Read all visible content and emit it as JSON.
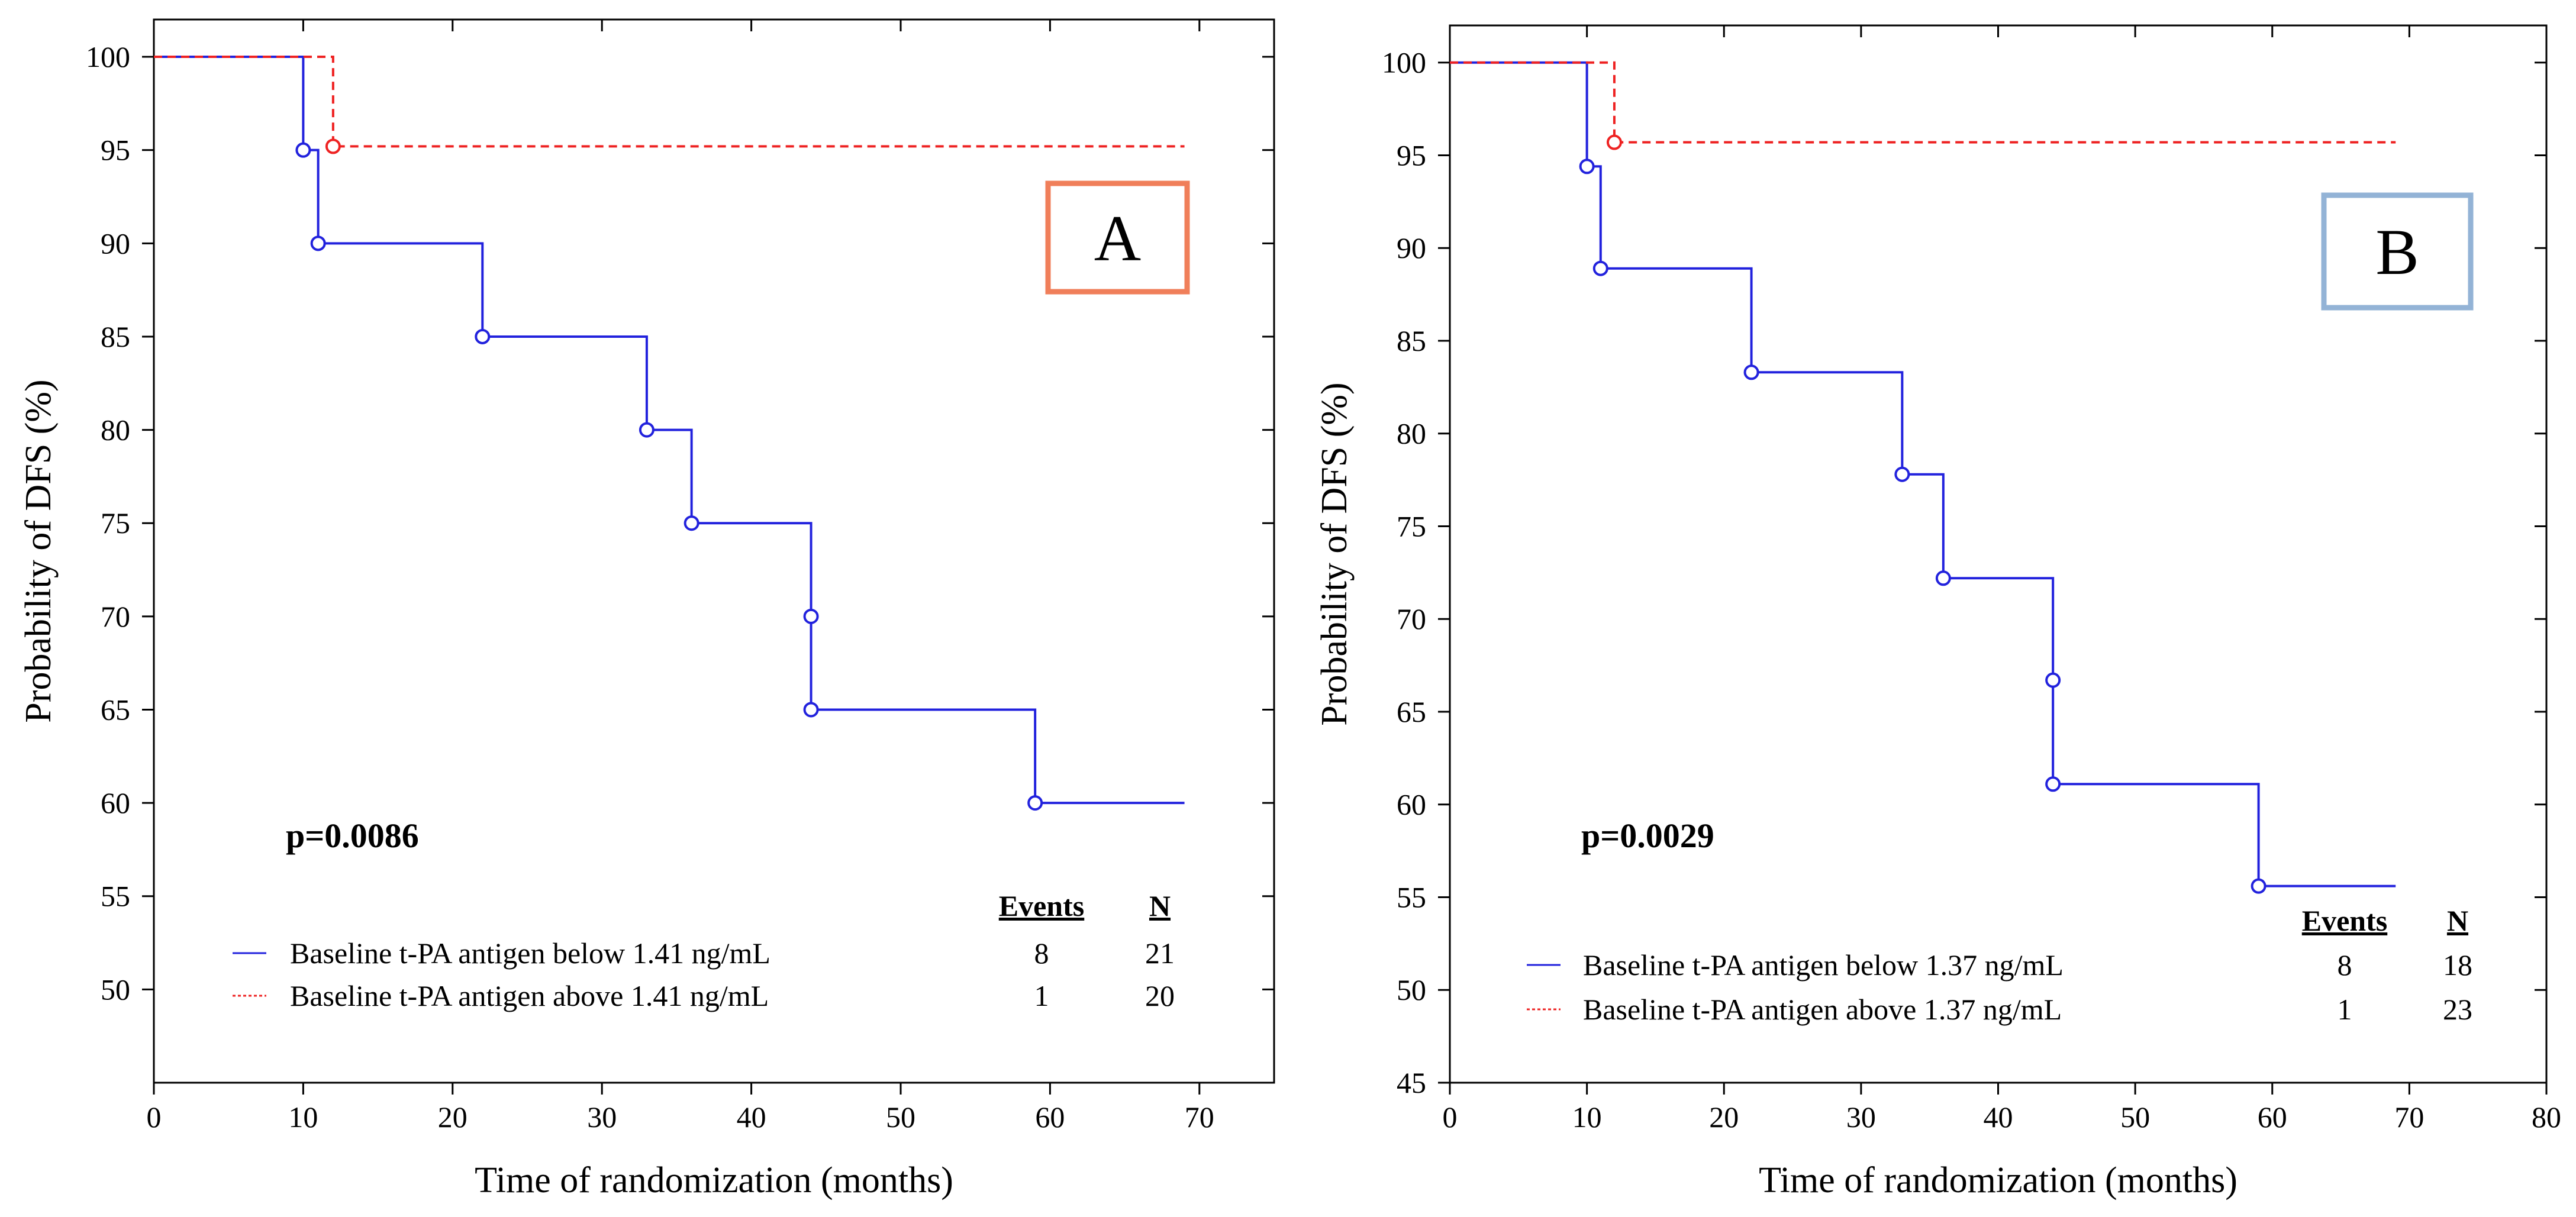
{
  "chart_data": [
    {
      "type": "line",
      "subtype": "kaplan-meier",
      "panel_label": "A",
      "panel_label_color": "#f07f5a",
      "xlabel": "Time of randomization (months)",
      "ylabel": "Probability of DFS (%)",
      "xlim": [
        0,
        75
      ],
      "ylim": [
        45,
        102
      ],
      "xticks": [
        0,
        10,
        20,
        30,
        40,
        50,
        60,
        70
      ],
      "yticks": [
        50,
        55,
        60,
        65,
        70,
        75,
        80,
        85,
        90,
        95,
        100
      ],
      "p_value": "p=0.0086",
      "legend_headers": {
        "events": "Events",
        "n": "N"
      },
      "series": [
        {
          "name": "Baseline t-PA antigen below 1.41 ng/mL",
          "color": "#2222dd",
          "style": "solid",
          "events": "8",
          "n": "21",
          "x": [
            0,
            10,
            11,
            22,
            33,
            36,
            44,
            59,
            69
          ],
          "y": [
            100,
            95,
            90,
            85,
            80,
            75,
            65,
            60,
            60
          ],
          "markers": [
            [
              10,
              95
            ],
            [
              11,
              90
            ],
            [
              22,
              85
            ],
            [
              33,
              80
            ],
            [
              36,
              75
            ],
            [
              44,
              70
            ],
            [
              44,
              65
            ],
            [
              59,
              60
            ]
          ]
        },
        {
          "name": "Baseline t-PA antigen above 1.41 ng/mL",
          "color": "#ee2222",
          "style": "dashed",
          "events": "1",
          "n": "20",
          "x": [
            0,
            12,
            69
          ],
          "y": [
            100,
            95.2,
            95.2
          ],
          "markers": [
            [
              12,
              95.2
            ]
          ]
        }
      ]
    },
    {
      "type": "line",
      "subtype": "kaplan-meier",
      "panel_label": "B",
      "panel_label_color": "#93b3d6",
      "xlabel": "Time of randomization (months)",
      "ylabel": "Probability of DFS (%)",
      "xlim": [
        0,
        80
      ],
      "ylim": [
        45,
        102
      ],
      "xticks": [
        0,
        10,
        20,
        30,
        40,
        50,
        60,
        70,
        80
      ],
      "yticks": [
        45,
        50,
        55,
        60,
        65,
        70,
        75,
        80,
        85,
        90,
        95,
        100
      ],
      "p_value": "p=0.0029",
      "legend_headers": {
        "events": "Events",
        "n": "N"
      },
      "series": [
        {
          "name": "Baseline t-PA antigen below 1.37 ng/mL",
          "color": "#2222dd",
          "style": "solid",
          "events": "8",
          "n": "18",
          "x": [
            0,
            10,
            11,
            22,
            33,
            36,
            44,
            59,
            69
          ],
          "y": [
            100,
            94.4,
            88.9,
            83.3,
            77.8,
            72.2,
            61.1,
            55.6,
            55.6
          ],
          "markers": [
            [
              10,
              94.4
            ],
            [
              11,
              88.9
            ],
            [
              22,
              83.3
            ],
            [
              33,
              77.8
            ],
            [
              36,
              72.2
            ],
            [
              44,
              66.7
            ],
            [
              44,
              61.1
            ],
            [
              59,
              55.6
            ]
          ]
        },
        {
          "name": "Baseline t-PA antigen above 1.37 ng/mL",
          "color": "#ee2222",
          "style": "dashed",
          "events": "1",
          "n": "23",
          "x": [
            0,
            12,
            69
          ],
          "y": [
            100,
            95.7,
            95.7
          ],
          "markers": [
            [
              12,
              95.7
            ]
          ]
        }
      ]
    }
  ]
}
